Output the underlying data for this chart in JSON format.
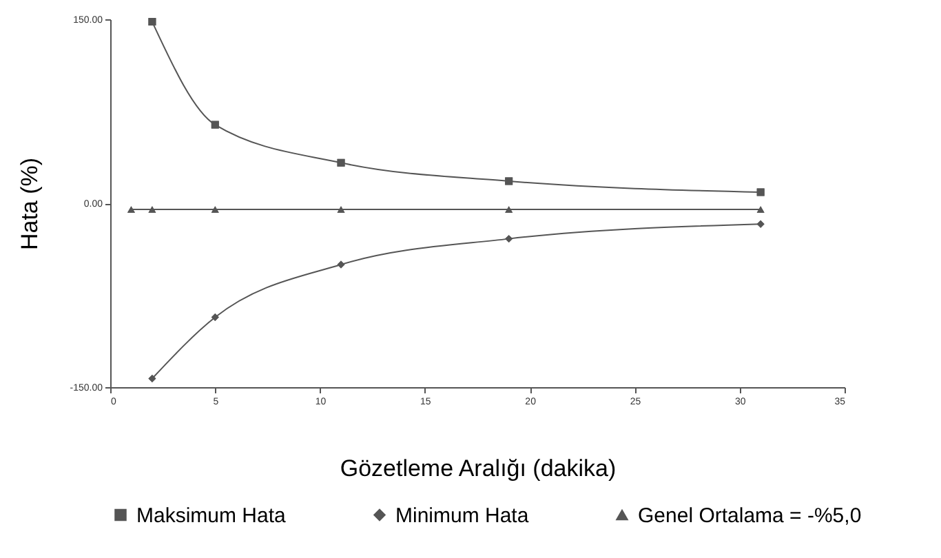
{
  "chart_data": {
    "type": "line",
    "xlabel": "Gözetleme Aralığı (dakika)",
    "ylabel": "Hata (%)",
    "x": [
      2,
      5,
      11,
      19,
      31
    ],
    "series": [
      {
        "name": "Maksimum Hata",
        "color": "#555555",
        "marker": "square",
        "values": [
          148,
          64,
          33,
          18,
          9
        ]
      },
      {
        "name": "Minimum Hata",
        "color": "#555555",
        "marker": "diamond",
        "values": [
          -143,
          -93,
          -50,
          -29,
          -17
        ]
      },
      {
        "name": "Genel Ortalama = -%5,0",
        "color": "#555555",
        "marker": "triangle",
        "x": [
          1,
          2,
          5,
          11,
          19,
          31
        ],
        "values": [
          -5,
          -5,
          -5,
          -5,
          -5,
          -5
        ]
      }
    ],
    "xlim": [
      0,
      35
    ],
    "xticks": [
      0,
      5,
      10,
      15,
      20,
      25,
      30,
      35
    ],
    "ylim": [
      -150,
      150
    ],
    "yticks": [
      {
        "value": -150,
        "label": "-150.00"
      },
      {
        "value": 0,
        "label": "0.00"
      },
      {
        "value": 150,
        "label": "150.00"
      }
    ],
    "grid": false,
    "legend": "bottom",
    "line_style": "solid"
  }
}
